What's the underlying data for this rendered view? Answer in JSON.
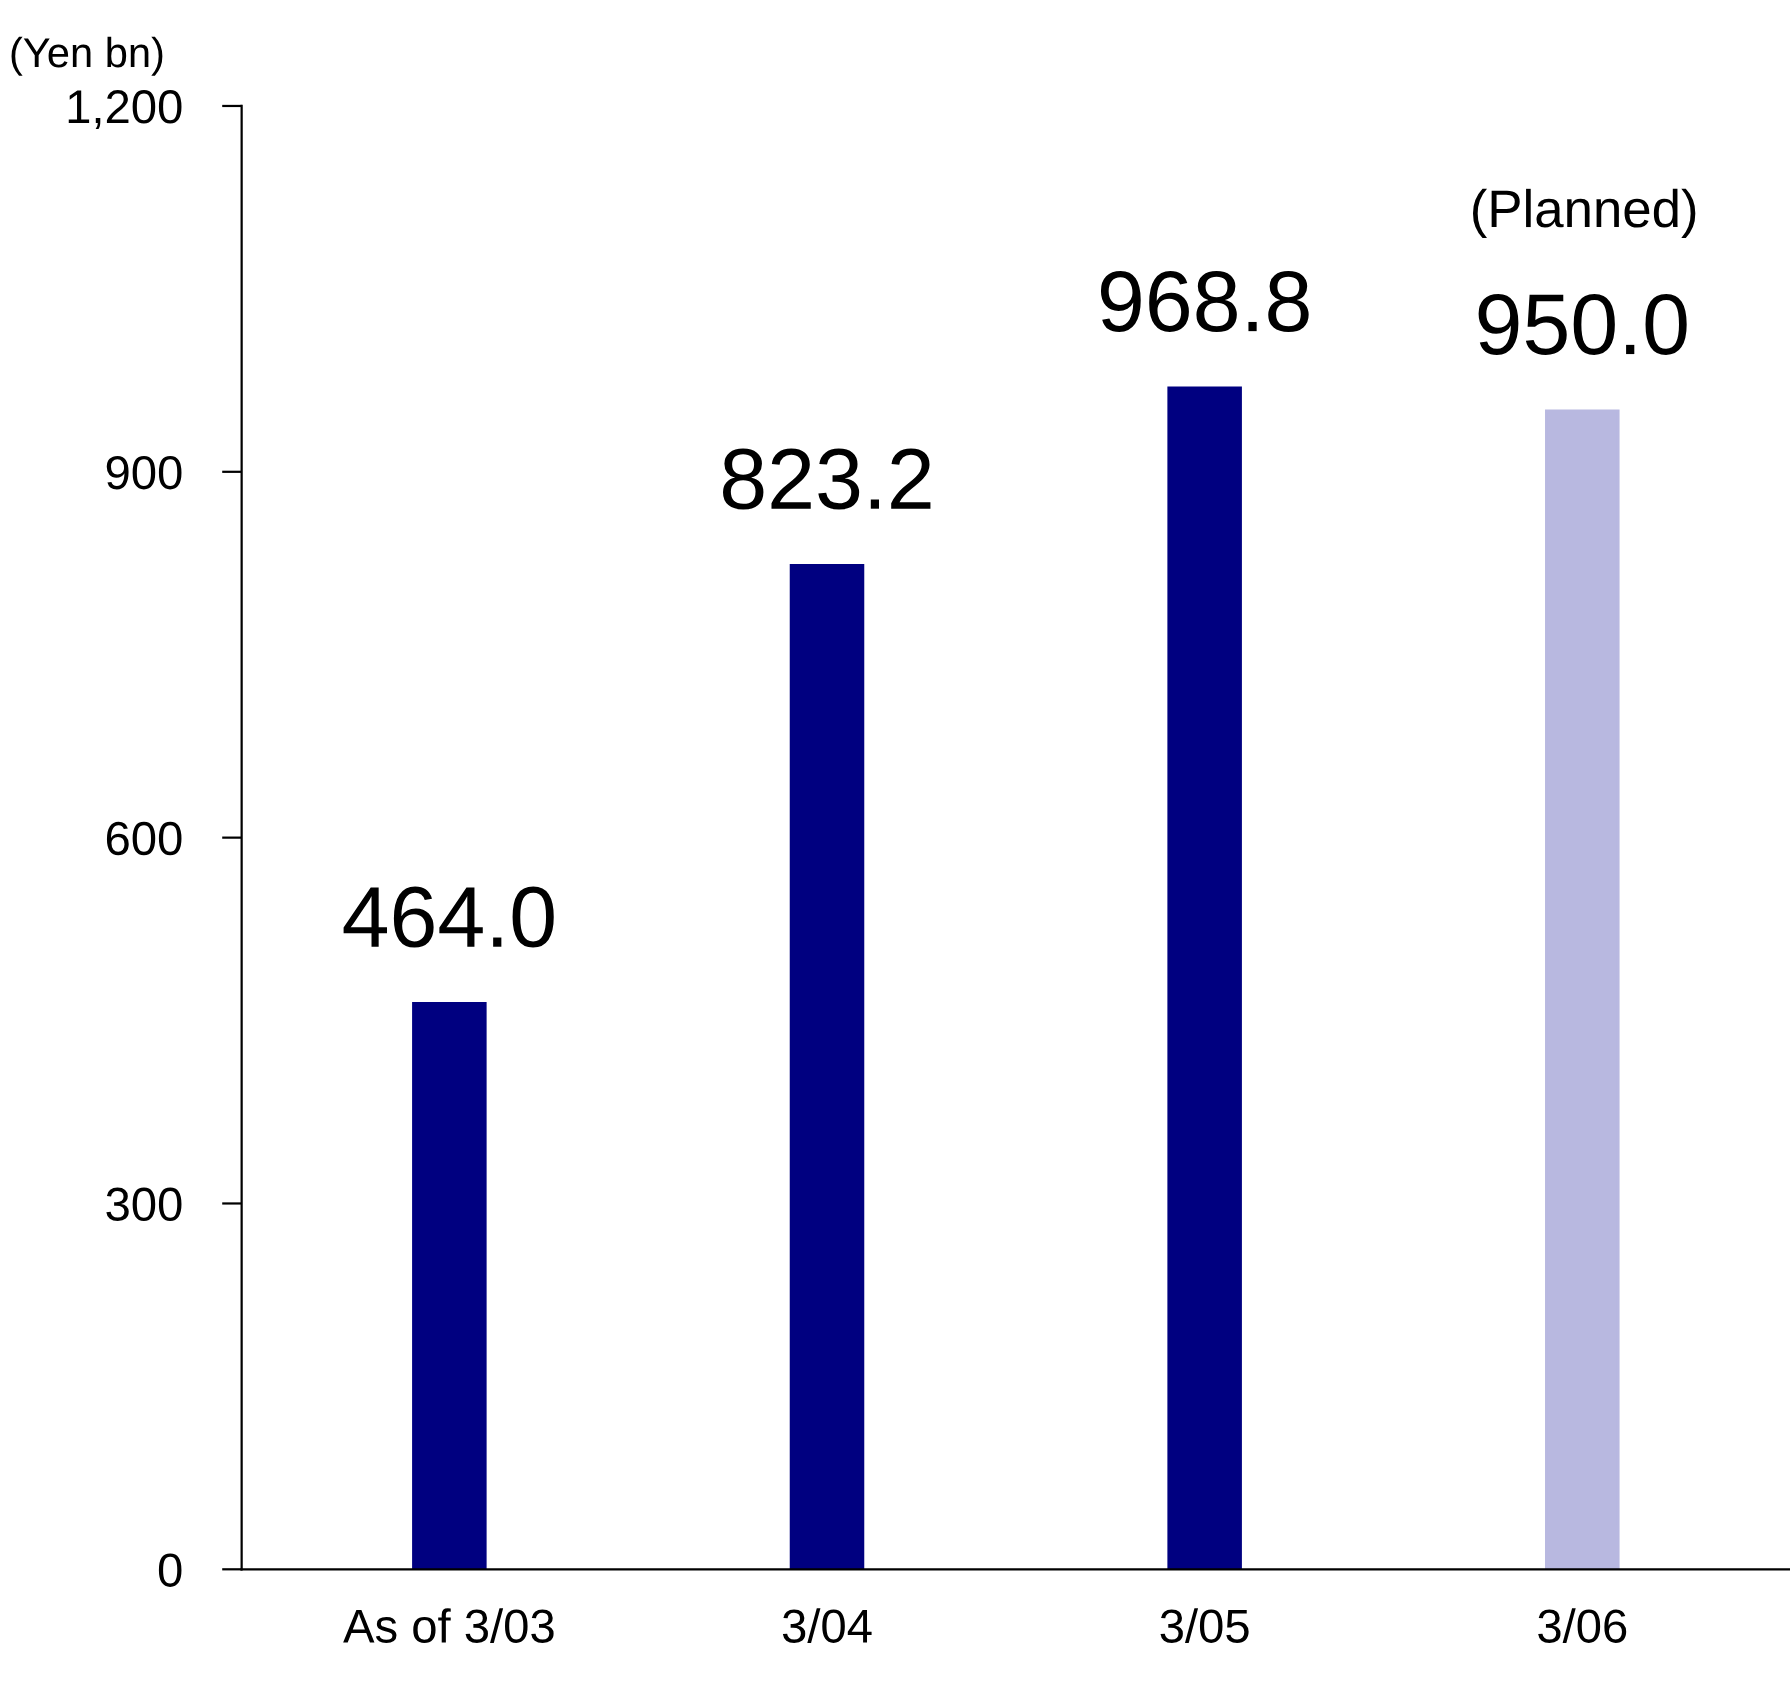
{
  "chart_data": {
    "type": "bar",
    "ylabel": "(Yen bn)",
    "categories": [
      "As of 3/03",
      "3/04",
      "3/05",
      "3/06"
    ],
    "values": [
      464.0,
      823.2,
      968.8,
      950.0
    ],
    "colors": [
      "#000080",
      "#000080",
      "#000080",
      "#b8b8e0"
    ],
    "ylim": [
      0,
      1200
    ],
    "yticks": [
      0,
      300,
      600,
      900,
      {
        "value": 1200,
        "label": "1,200"
      }
    ],
    "grid": false,
    "value_labels": [
      "464.0",
      "823.2",
      "968.8",
      "950.0"
    ],
    "annotations": [
      "(Planned)"
    ]
  }
}
